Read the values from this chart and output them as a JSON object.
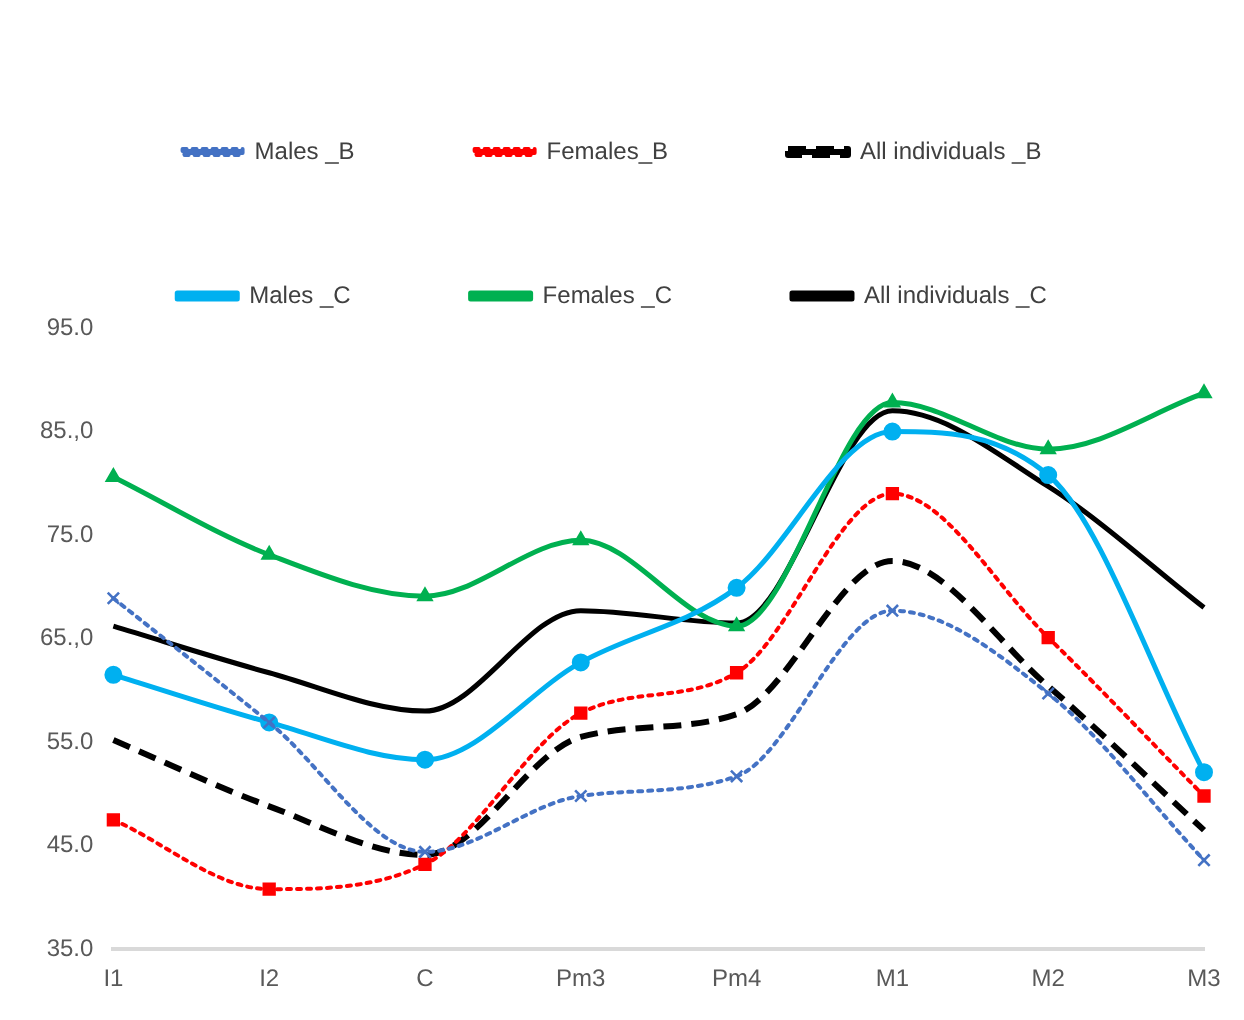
{
  "chart_data": {
    "type": "line",
    "categories": [
      "I1",
      "I2",
      "C",
      "Pm3",
      "Pm4",
      "M1",
      "M2",
      "M3"
    ],
    "ylim": [
      35,
      95
    ],
    "yticks": [
      {
        "value": 35,
        "label": "35.0"
      },
      {
        "value": 45,
        "label": "45.0"
      },
      {
        "value": 55,
        "label": "55.0"
      },
      {
        "value": 65,
        "label": "65.,0"
      },
      {
        "value": 75,
        "label": "75.0"
      },
      {
        "value": 85,
        "label": "85.,0"
      },
      {
        "value": 95,
        "label": "95.0"
      }
    ],
    "grid": false,
    "legend": "top",
    "series": [
      {
        "name": "Males _B",
        "color": "#4472c4",
        "marker": "cross",
        "line_style": "dotted",
        "values": [
          68.9,
          56.9,
          44.4,
          49.8,
          51.7,
          67.7,
          59.7,
          43.6
        ]
      },
      {
        "name": "Females_B",
        "color": "#ff0000",
        "marker": "square",
        "line_style": "dotted",
        "values": [
          47.5,
          40.8,
          43.2,
          57.8,
          61.7,
          79.0,
          65.1,
          49.8
        ]
      },
      {
        "name": "All individuals _B",
        "color": "#000000",
        "marker": "none",
        "line_style": "dashed",
        "values": [
          55.2,
          48.8,
          44.1,
          55.5,
          57.7,
          72.5,
          60.4,
          46.5
        ]
      },
      {
        "name": "Males _C",
        "color": "#00b0f0",
        "marker": "circle",
        "line_style": "solid",
        "values": [
          61.5,
          56.9,
          53.3,
          62.7,
          69.9,
          85.0,
          80.8,
          52.1
        ]
      },
      {
        "name": "Females _C",
        "color": "#00b050",
        "marker": "triangle",
        "line_style": "solid",
        "values": [
          80.6,
          73.1,
          69.1,
          74.5,
          66.2,
          87.8,
          83.3,
          88.7
        ]
      },
      {
        "name": "All individuals _C",
        "color": "#000000",
        "marker": "none",
        "line_style": "solid",
        "values": [
          66.2,
          61.7,
          58.0,
          67.7,
          66.5,
          87.0,
          79.7,
          68.0
        ]
      }
    ]
  }
}
